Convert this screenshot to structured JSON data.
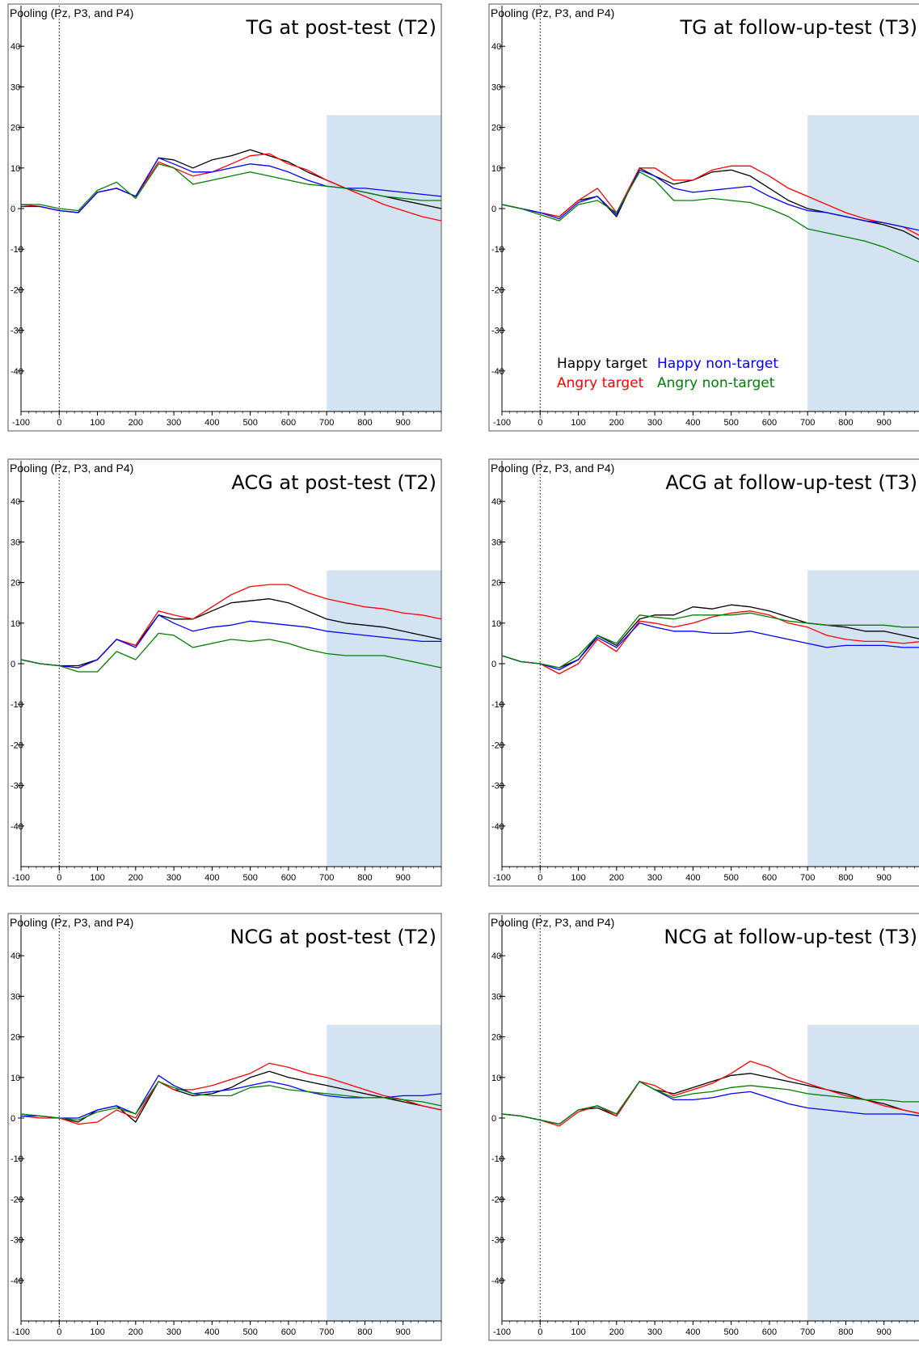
{
  "figure": {
    "panel_header": "Pooling (Pz, P3, and P4)",
    "colors": {
      "happy_target": "#000000",
      "angry_target": "#ff0000",
      "happy_nontarget": "#0000ff",
      "angry_nontarget": "#008000",
      "window_shade": "#d4e3f2",
      "frame": "#555555"
    }
  },
  "chart_data": [
    {
      "type": "line",
      "title": "TG at post-test (T2)",
      "header": "Pooling (Pz, P3, and P4)",
      "xlim": [
        -100,
        1000
      ],
      "ylim": [
        -50,
        50
      ],
      "xticks": [
        -100,
        0,
        100,
        200,
        300,
        400,
        500,
        600,
        700,
        800,
        900
      ],
      "yticks": [
        40,
        30,
        20,
        10,
        0,
        -10,
        -20,
        -30,
        -40
      ],
      "shaded_region": {
        "x": [
          700,
          1000
        ],
        "y": [
          -50,
          23
        ]
      },
      "x": [
        -100,
        -50,
        0,
        50,
        100,
        150,
        200,
        260,
        300,
        350,
        400,
        450,
        500,
        550,
        600,
        650,
        700,
        750,
        800,
        850,
        900,
        950,
        1000
      ],
      "series": [
        {
          "name": "Happy target",
          "values": [
            1,
            0.5,
            -0.5,
            -1,
            4,
            5,
            3,
            12.5,
            12,
            10,
            12,
            13,
            14.5,
            13,
            11.5,
            9,
            7,
            5,
            4,
            3,
            2,
            1,
            0
          ]
        },
        {
          "name": "Angry target",
          "values": [
            1,
            0.5,
            -0.5,
            -1,
            4,
            5,
            3,
            11.5,
            10,
            8,
            9,
            11,
            13,
            13.5,
            11,
            9.5,
            7,
            5,
            3,
            1,
            -0.5,
            -2,
            -3
          ]
        },
        {
          "name": "Happy non-target",
          "values": [
            0.5,
            0.5,
            -0.5,
            -1,
            4,
            5,
            3,
            12.5,
            11,
            9,
            9,
            10,
            11,
            10.5,
            9,
            7,
            5.5,
            5,
            5,
            4.5,
            4,
            3.5,
            3
          ]
        },
        {
          "name": "Angry non-target",
          "values": [
            1,
            1,
            0,
            -0.5,
            4.5,
            6.5,
            2.5,
            11,
            10,
            6,
            7,
            8,
            9,
            8,
            7,
            6,
            5.5,
            5,
            4,
            3,
            2.5,
            2,
            2
          ]
        }
      ]
    },
    {
      "type": "line",
      "title": "TG at follow-up-test (T3)",
      "header": "Pooling (Pz, P3, and P4)",
      "xlim": [
        -100,
        1000
      ],
      "ylim": [
        -50,
        50
      ],
      "xticks": [
        -100,
        0,
        100,
        200,
        300,
        400,
        500,
        600,
        700,
        800,
        900
      ],
      "yticks": [
        40,
        30,
        20,
        10,
        0,
        -10,
        -20,
        -30,
        -40
      ],
      "shaded_region": {
        "x": [
          700,
          1000
        ],
        "y": [
          -50,
          23
        ]
      },
      "legend": {
        "position": "bottom-left",
        "items": [
          "Happy target",
          "Happy non-target",
          "Angry target",
          "Angry non-target"
        ]
      },
      "x": [
        -100,
        -50,
        0,
        50,
        100,
        150,
        200,
        260,
        300,
        350,
        400,
        450,
        500,
        550,
        600,
        650,
        700,
        750,
        800,
        850,
        900,
        950,
        1000
      ],
      "series": [
        {
          "name": "Happy target",
          "values": [
            1,
            0,
            -1,
            -2,
            2,
            3,
            -2,
            10,
            8,
            6,
            7,
            9,
            9.5,
            8,
            5,
            2,
            0,
            -1,
            -2,
            -3,
            -4,
            -5.5,
            -8
          ]
        },
        {
          "name": "Angry target",
          "values": [
            1,
            0,
            -1,
            -2,
            2,
            5,
            -1,
            10,
            10,
            7,
            7,
            9.5,
            10.5,
            10.5,
            8,
            5,
            3,
            1,
            -1,
            -2.5,
            -3.5,
            -4.5,
            -7
          ]
        },
        {
          "name": "Happy non-target",
          "values": [
            1,
            0,
            -1,
            -2.5,
            1.5,
            3,
            -1.5,
            9.5,
            8,
            5,
            4,
            4.5,
            5,
            5.5,
            3,
            1,
            -0.5,
            -1,
            -2,
            -3,
            -3.5,
            -4.5,
            -5.5
          ]
        },
        {
          "name": "Angry non-target",
          "values": [
            1,
            0,
            -1.5,
            -3,
            1,
            2,
            -1,
            9,
            7,
            2,
            2,
            2.5,
            2,
            1.5,
            0,
            -2,
            -5,
            -6,
            -7,
            -8,
            -9.5,
            -11.5,
            -13.5
          ]
        }
      ]
    },
    {
      "type": "line",
      "title": "ACG at post-test (T2)",
      "header": "Pooling (Pz, P3, and P4)",
      "xlim": [
        -100,
        1000
      ],
      "ylim": [
        -50,
        50
      ],
      "xticks": [
        -100,
        0,
        100,
        200,
        300,
        400,
        500,
        600,
        700,
        800,
        900
      ],
      "yticks": [
        40,
        30,
        20,
        10,
        0,
        -10,
        -20,
        -30,
        -40
      ],
      "shaded_region": {
        "x": [
          700,
          1000
        ],
        "y": [
          -50,
          23
        ]
      },
      "x": [
        -100,
        -50,
        0,
        50,
        100,
        150,
        200,
        260,
        300,
        350,
        400,
        450,
        500,
        550,
        600,
        650,
        700,
        750,
        800,
        850,
        900,
        950,
        1000
      ],
      "series": [
        {
          "name": "Happy target",
          "values": [
            1,
            0,
            -0.5,
            -0.5,
            1,
            6,
            4.5,
            12,
            11,
            11,
            13,
            15,
            15.5,
            16,
            15,
            13,
            11,
            10,
            9.5,
            9,
            8,
            7,
            6
          ]
        },
        {
          "name": "Angry target",
          "values": [
            1,
            0,
            -0.5,
            -1,
            1,
            6,
            4.5,
            13,
            12,
            11,
            14,
            17,
            19,
            19.5,
            19.5,
            17.5,
            16,
            15,
            14,
            13.5,
            12.5,
            12,
            11
          ]
        },
        {
          "name": "Happy non-target",
          "values": [
            1,
            0,
            -0.5,
            -1,
            1,
            6,
            4,
            12,
            10,
            8,
            9,
            9.5,
            10.5,
            10,
            9.5,
            9,
            8,
            7.5,
            7,
            6.5,
            6,
            5.5,
            5.5
          ]
        },
        {
          "name": "Angry non-target",
          "values": [
            1,
            0,
            -0.5,
            -2,
            -2,
            3,
            1,
            7.5,
            7,
            4,
            5,
            6,
            5.5,
            6,
            5,
            3.5,
            2.5,
            2,
            2,
            2,
            1,
            0,
            -1
          ]
        }
      ]
    },
    {
      "type": "line",
      "title": "ACG at follow-up-test (T3)",
      "header": "Pooling (Pz, P3, and P4)",
      "xlim": [
        -100,
        1000
      ],
      "ylim": [
        -50,
        50
      ],
      "xticks": [
        -100,
        0,
        100,
        200,
        300,
        400,
        500,
        600,
        700,
        800,
        900
      ],
      "yticks": [
        40,
        30,
        20,
        10,
        0,
        -10,
        -20,
        -30,
        -40
      ],
      "shaded_region": {
        "x": [
          700,
          1000
        ],
        "y": [
          -50,
          23
        ]
      },
      "x": [
        -100,
        -50,
        0,
        50,
        100,
        150,
        200,
        260,
        300,
        350,
        400,
        450,
        500,
        550,
        600,
        650,
        700,
        750,
        800,
        850,
        900,
        950,
        1000
      ],
      "series": [
        {
          "name": "Happy target",
          "values": [
            2,
            0.5,
            0,
            -1,
            1,
            7,
            4.5,
            11,
            12,
            12,
            14,
            13.5,
            14.5,
            14,
            13,
            11.5,
            10,
            9.5,
            9,
            8,
            8,
            7,
            6
          ]
        },
        {
          "name": "Angry target",
          "values": [
            2,
            0.5,
            0,
            -2.5,
            0,
            6,
            3,
            10.5,
            10,
            9,
            10,
            11.5,
            12.5,
            13,
            12,
            10,
            9,
            7,
            6,
            5.5,
            5.5,
            5,
            5.5
          ]
        },
        {
          "name": "Happy non-target",
          "values": [
            2,
            0.5,
            0,
            -1.5,
            1,
            6.5,
            4,
            10,
            9,
            8,
            8,
            7.5,
            7.5,
            8,
            7,
            6,
            5,
            4,
            4.5,
            4.5,
            4.5,
            4,
            4
          ]
        },
        {
          "name": "Angry non-target",
          "values": [
            2,
            0.5,
            0,
            -1,
            2,
            7,
            5,
            12,
            11.5,
            11,
            12,
            12,
            12,
            12.5,
            11.5,
            10.5,
            10,
            9.5,
            9.5,
            9.5,
            9.5,
            9,
            9
          ]
        }
      ]
    },
    {
      "type": "line",
      "title": "NCG at post-test (T2)",
      "header": "Pooling (Pz, P3, and P4)",
      "xlim": [
        -100,
        1000
      ],
      "ylim": [
        -50,
        50
      ],
      "xticks": [
        -100,
        0,
        100,
        200,
        300,
        400,
        500,
        600,
        700,
        800,
        900
      ],
      "yticks": [
        40,
        30,
        20,
        10,
        0,
        -10,
        -20,
        -30,
        -40
      ],
      "shaded_region": {
        "x": [
          700,
          1000
        ],
        "y": [
          -50,
          23
        ]
      },
      "x": [
        -100,
        -50,
        0,
        50,
        100,
        150,
        200,
        260,
        300,
        350,
        400,
        450,
        500,
        550,
        600,
        650,
        700,
        750,
        800,
        850,
        900,
        950,
        1000
      ],
      "series": [
        {
          "name": "Happy target",
          "values": [
            1,
            0.5,
            0,
            -1,
            2,
            3,
            -1,
            9,
            7,
            5.5,
            6,
            7.5,
            10,
            11.5,
            10,
            9,
            8,
            7,
            6,
            5,
            4,
            3,
            2
          ]
        },
        {
          "name": "Angry target",
          "values": [
            0.5,
            0,
            0,
            -1.5,
            -1,
            2,
            0,
            9,
            7,
            7,
            8,
            9.5,
            11,
            13.5,
            12.5,
            11,
            10,
            8.5,
            7,
            5.5,
            4.5,
            3,
            2
          ]
        },
        {
          "name": "Happy non-target",
          "values": [
            0.5,
            0.5,
            0,
            0,
            2,
            3,
            1,
            10.5,
            8,
            6,
            6.5,
            7,
            8,
            9,
            8,
            6.5,
            5.5,
            5,
            5,
            5,
            5.5,
            5.5,
            6
          ]
        },
        {
          "name": "Angry non-target",
          "values": [
            1,
            0.5,
            0,
            -0.5,
            1.5,
            2.5,
            1,
            9,
            7.5,
            6,
            5.5,
            5.5,
            7.5,
            8,
            7,
            6.5,
            6,
            5.5,
            5,
            5,
            4.5,
            4,
            3
          ]
        }
      ]
    },
    {
      "type": "line",
      "title": "NCG at follow-up-test (T3)",
      "header": "Pooling (Pz, P3, and P4)",
      "xlim": [
        -100,
        1000
      ],
      "ylim": [
        -50,
        50
      ],
      "xticks": [
        -100,
        0,
        100,
        200,
        300,
        400,
        500,
        600,
        700,
        800,
        900
      ],
      "yticks": [
        40,
        30,
        20,
        10,
        0,
        -10,
        -20,
        -30,
        -40
      ],
      "shaded_region": {
        "x": [
          700,
          1000
        ],
        "y": [
          -50,
          23
        ]
      },
      "x": [
        -100,
        -50,
        0,
        50,
        100,
        150,
        200,
        260,
        300,
        350,
        400,
        450,
        500,
        550,
        600,
        650,
        700,
        750,
        800,
        850,
        900,
        950,
        1000
      ],
      "series": [
        {
          "name": "Happy target",
          "values": [
            1,
            0.5,
            -0.5,
            -1.5,
            2,
            2.5,
            0.5,
            9,
            7,
            6,
            7.5,
            9,
            10.5,
            11,
            10,
            9,
            8,
            7,
            6,
            4.5,
            3.5,
            2,
            1
          ]
        },
        {
          "name": "Angry target",
          "values": [
            1,
            0.5,
            -0.5,
            -2,
            1.5,
            3,
            0.5,
            9,
            8,
            5.5,
            7,
            8.5,
            11,
            14,
            12.5,
            10,
            8.5,
            7,
            5.5,
            4.5,
            3,
            2,
            1
          ]
        },
        {
          "name": "Happy non-target",
          "values": [
            1,
            0.5,
            -0.5,
            -1.5,
            2,
            3,
            1,
            9,
            7,
            4.5,
            4.5,
            5,
            6,
            6.5,
            5,
            3.5,
            2.5,
            2,
            1.5,
            1,
            1,
            1,
            0.5
          ]
        },
        {
          "name": "Angry non-target",
          "values": [
            1,
            0.5,
            -0.5,
            -1.5,
            2,
            3,
            1,
            9,
            7,
            5,
            6,
            6.5,
            7.5,
            8,
            7.5,
            7,
            6,
            5.5,
            5,
            4.5,
            4.5,
            4,
            4
          ]
        }
      ]
    }
  ]
}
